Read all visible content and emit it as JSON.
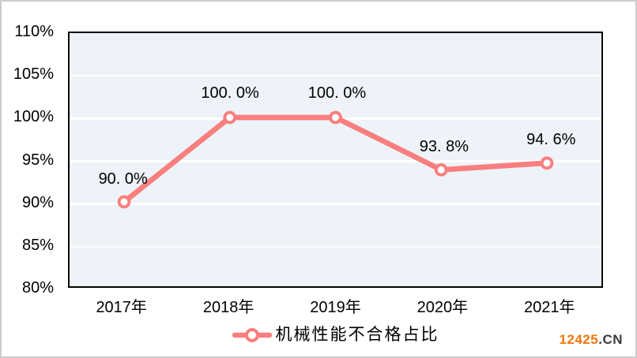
{
  "chart_data": {
    "type": "line",
    "title": "",
    "categories": [
      "2017年",
      "2018年",
      "2019年",
      "2020年",
      "2021年"
    ],
    "series": [
      {
        "name": "机械性能不合格占比",
        "values": [
          90.0,
          100.0,
          100.0,
          93.8,
          94.6
        ]
      }
    ],
    "point_labels": [
      "90. 0%",
      "100. 0%",
      "100. 0%",
      "93. 8%",
      "94. 6%"
    ],
    "xlabel": "",
    "ylabel": "",
    "ylim": [
      80,
      110
    ],
    "ytick_step": 5,
    "yticks": [
      "110%",
      "105%",
      "100%",
      "95%",
      "90%",
      "85%",
      "80%"
    ],
    "grid": true,
    "legend_position": "bottom",
    "colors": {
      "line": "#F97E7E",
      "marker_fill": "#FFFFFF",
      "plot_background": "#EDF3F8",
      "gridline": "#FFFFFF",
      "plot_border": "#000000",
      "text": "#000000"
    }
  },
  "legend": {
    "label": "机械性能不合格占比"
  },
  "watermark": {
    "brand": "12425",
    "suffix": ".CN",
    "brand_color": "#F07509",
    "suffix_color": "#3A3A3A"
  }
}
